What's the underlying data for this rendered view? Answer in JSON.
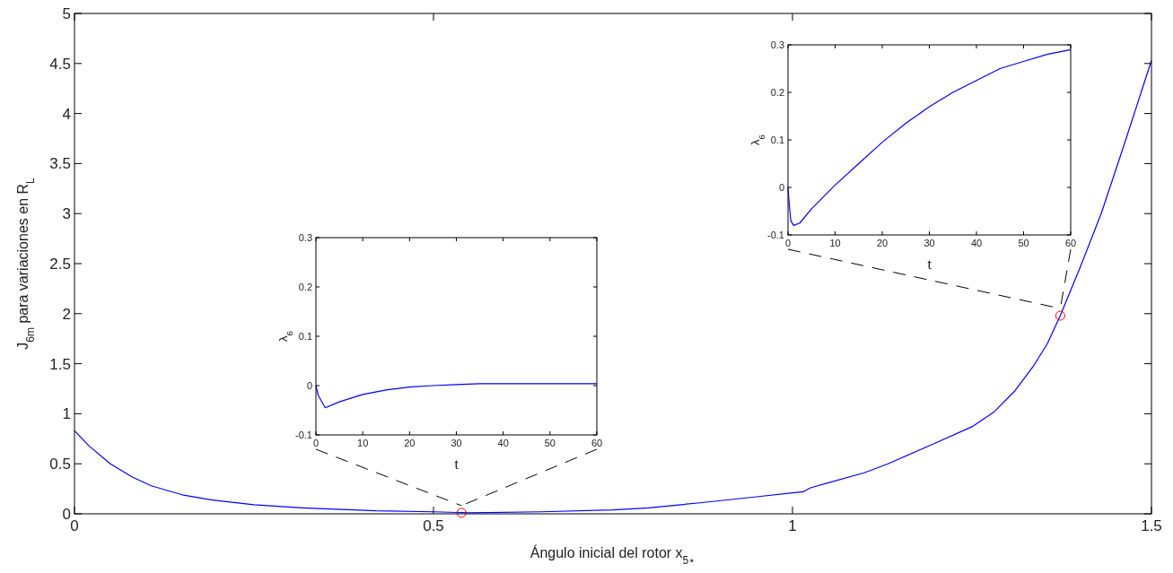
{
  "chart_data": [
    {
      "type": "line",
      "xlabel": "Ángulo inicial del rotor x$_{5⋆}$",
      "ylabel": "J$_{6m}$ para variaciones en R$_{L}$",
      "xlim": [
        0,
        1.5
      ],
      "ylim": [
        0,
        5
      ],
      "xticks": [
        0,
        0.5,
        1,
        1.5
      ],
      "yticks": [
        0,
        0.5,
        1,
        1.5,
        2,
        2.5,
        3,
        3.5,
        4,
        4.5,
        5
      ],
      "marker": "none",
      "line_style": "solid",
      "series": [
        {
          "color": "#0000ff",
          "x": [
            0,
            0.02,
            0.05,
            0.08,
            0.107,
            0.15,
            0.19,
            0.25,
            0.317,
            0.42,
            0.5,
            0.55,
            0.65,
            0.75,
            0.8,
            0.871,
            0.95,
            1.0,
            1.015,
            1.025,
            1.05,
            1.1,
            1.133,
            1.2,
            1.25,
            1.281,
            1.31,
            1.335,
            1.355,
            1.373,
            1.4,
            1.43,
            1.462,
            1.5
          ],
          "values": [
            0.83,
            0.68,
            0.5,
            0.37,
            0.28,
            0.19,
            0.14,
            0.09,
            0.06,
            0.03,
            0.02,
            0.01,
            0.02,
            0.04,
            0.06,
            0.11,
            0.17,
            0.21,
            0.22,
            0.26,
            0.31,
            0.41,
            0.5,
            0.71,
            0.87,
            1.02,
            1.23,
            1.47,
            1.7,
            1.98,
            2.45,
            3.0,
            3.69,
            4.53
          ]
        },
        {
          "type": "scatter",
          "color": "#ff0000",
          "marker": "circle",
          "x": [
            0.539,
            1.373
          ],
          "values": [
            0.01,
            1.98
          ]
        }
      ]
    },
    {
      "type": "line",
      "xlabel": "t",
      "ylabel": "λ$_{6}$",
      "xlim": [
        0,
        60
      ],
      "ylim": [
        -0.1,
        0.3
      ],
      "xticks": [
        0,
        10,
        20,
        30,
        40,
        50,
        60
      ],
      "yticks": [
        -0.1,
        0,
        0.1,
        0.2,
        0.3
      ],
      "marker": "none",
      "line_style": "solid",
      "series": [
        {
          "color": "#0000ff",
          "x": [
            0,
            0.5,
            2,
            5,
            10,
            15,
            20,
            25,
            30,
            35,
            40,
            50,
            60
          ],
          "values": [
            0,
            -0.02,
            -0.045,
            -0.033,
            -0.018,
            -0.009,
            -0.003,
            0,
            0.002,
            0.004,
            0.004,
            0.004,
            0.004
          ]
        }
      ]
    },
    {
      "type": "line",
      "xlabel": "t",
      "ylabel": "λ$_{6}$",
      "xlim": [
        0,
        60
      ],
      "ylim": [
        -0.1,
        0.3
      ],
      "xticks": [
        0,
        10,
        20,
        30,
        40,
        50,
        60
      ],
      "yticks": [
        -0.1,
        0,
        0.1,
        0.2,
        0.3
      ],
      "marker": "none",
      "line_style": "solid",
      "series": [
        {
          "color": "#0000ff",
          "x": [
            0,
            0.3,
            0.6,
            1.2,
            2.5,
            5,
            10,
            15,
            20,
            25,
            30,
            35,
            40,
            45,
            50,
            55,
            60
          ],
          "values": [
            0,
            -0.04,
            -0.07,
            -0.08,
            -0.075,
            -0.045,
            0.005,
            0.05,
            0.095,
            0.135,
            0.17,
            0.2,
            0.225,
            0.25,
            0.265,
            0.28,
            0.29
          ]
        }
      ]
    }
  ]
}
